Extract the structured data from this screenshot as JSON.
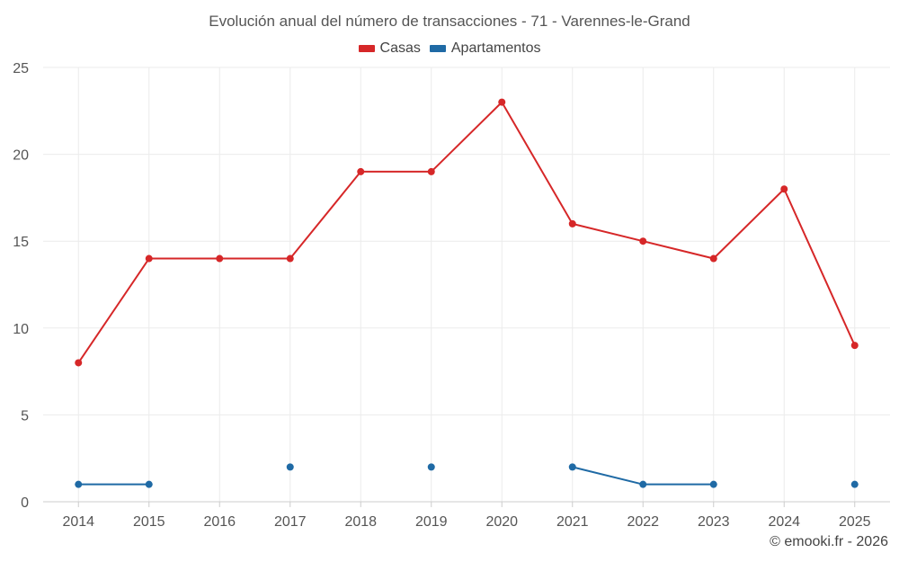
{
  "title": "Evolución anual del número de transacciones - 71 - Varennes-le-Grand",
  "footer": "© emooki.fr - 2026",
  "colors": {
    "casas": "#d62728",
    "apartamentos": "#1f6aa5",
    "grid": "#ebebeb",
    "axis": "#cccccc"
  },
  "chart_data": {
    "type": "line",
    "title": "Evolución anual del número de transacciones - 71 - Varennes-le-Grand",
    "xlabel": "",
    "ylabel": "",
    "categories": [
      "2014",
      "2015",
      "2016",
      "2017",
      "2018",
      "2019",
      "2020",
      "2021",
      "2022",
      "2023",
      "2024",
      "2025"
    ],
    "ylim": [
      0,
      25
    ],
    "yticks": [
      0,
      5,
      10,
      15,
      20,
      25
    ],
    "legend": "top-center",
    "grid": true,
    "series": [
      {
        "name": "Casas",
        "color": "#d62728",
        "values": [
          8,
          14,
          14,
          14,
          19,
          19,
          23,
          16,
          15,
          14,
          18,
          9
        ]
      },
      {
        "name": "Apartamentos",
        "color": "#1f6aa5",
        "values": [
          1,
          1,
          null,
          2,
          null,
          2,
          null,
          2,
          1,
          1,
          null,
          1
        ]
      }
    ]
  }
}
